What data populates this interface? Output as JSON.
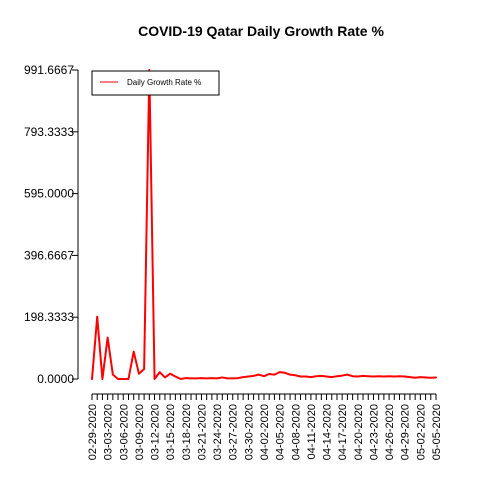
{
  "chart_data": {
    "type": "line",
    "title": "COVID-19 Qatar Daily Growth Rate %",
    "xlabel": "",
    "ylabel": "",
    "ylim": [
      0,
      991.6667
    ],
    "yticks": [
      "0.0000",
      "198.3333",
      "396.6667",
      "595.0000",
      "793.3333",
      "991.6667"
    ],
    "x_tick_labels": [
      "02-29-2020",
      "03-03-2020",
      "03-06-2020",
      "03-09-2020",
      "03-12-2020",
      "03-15-2020",
      "03-18-2020",
      "03-21-2020",
      "03-24-2020",
      "03-27-2020",
      "03-30-2020",
      "04-02-2020",
      "04-05-2020",
      "04-08-2020",
      "04-11-2020",
      "04-14-2020",
      "04-17-2020",
      "04-20-2020",
      "04-23-2020",
      "04-26-2020",
      "04-29-2020",
      "05-02-2020",
      "05-05-2020"
    ],
    "legend": {
      "position": "top-left",
      "entries": [
        "Daily Growth Rate %"
      ]
    },
    "grid": false,
    "series": [
      {
        "name": "Daily Growth Rate %",
        "color": "#ff0000",
        "x": [
          "02-29-2020",
          "03-01-2020",
          "03-02-2020",
          "03-03-2020",
          "03-04-2020",
          "03-05-2020",
          "03-06-2020",
          "03-07-2020",
          "03-08-2020",
          "03-09-2020",
          "03-10-2020",
          "03-11-2020",
          "03-12-2020",
          "03-13-2020",
          "03-14-2020",
          "03-15-2020",
          "03-16-2020",
          "03-17-2020",
          "03-18-2020",
          "03-19-2020",
          "03-20-2020",
          "03-21-2020",
          "03-22-2020",
          "03-23-2020",
          "03-24-2020",
          "03-25-2020",
          "03-26-2020",
          "03-27-2020",
          "03-28-2020",
          "03-29-2020",
          "03-30-2020",
          "03-31-2020",
          "04-01-2020",
          "04-02-2020",
          "04-03-2020",
          "04-04-2020",
          "04-05-2020",
          "04-06-2020",
          "04-07-2020",
          "04-08-2020",
          "04-09-2020",
          "04-10-2020",
          "04-11-2020",
          "04-12-2020",
          "04-13-2020",
          "04-14-2020",
          "04-15-2020",
          "04-16-2020",
          "04-17-2020",
          "04-18-2020",
          "04-19-2020",
          "04-20-2020",
          "04-21-2020",
          "04-22-2020",
          "04-23-2020",
          "04-24-2020",
          "04-25-2020",
          "04-26-2020",
          "04-27-2020",
          "04-28-2020",
          "04-29-2020",
          "04-30-2020",
          "05-01-2020",
          "05-02-2020",
          "05-03-2020",
          "05-04-2020",
          "05-05-2020"
        ],
        "values": [
          0,
          200,
          0,
          133,
          14,
          0,
          0,
          0,
          88,
          17,
          32,
          991.6667,
          0,
          22,
          5,
          17,
          8,
          0,
          3,
          2,
          2,
          3,
          2,
          3,
          2,
          5,
          2,
          2,
          3,
          6,
          8,
          10,
          14,
          9,
          16,
          14,
          22,
          20,
          14,
          12,
          8,
          8,
          6,
          9,
          10,
          8,
          6,
          9,
          11,
          14,
          9,
          8,
          10,
          9,
          8,
          9,
          8,
          9,
          8,
          9,
          8,
          6,
          4,
          6,
          5,
          4,
          5
        ]
      }
    ]
  }
}
